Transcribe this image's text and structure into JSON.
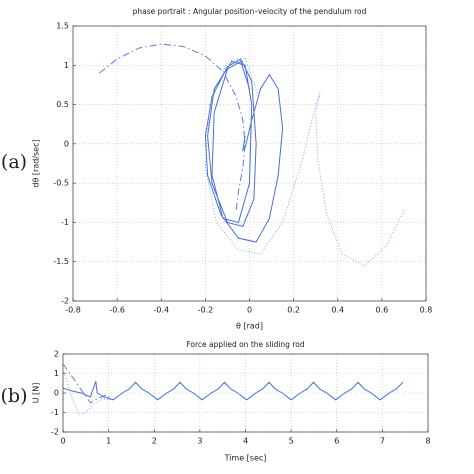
{
  "chart_data": [
    {
      "type": "line",
      "panel_label": "(a)",
      "title": "phase portrait : Angular position–velocity of the pendulum rod",
      "xlabel": "θ [rad]",
      "ylabel": "dθ [rad/sec]",
      "xlim": [
        -0.8,
        0.8
      ],
      "xticks": [
        -0.8,
        -0.6,
        -0.4,
        -0.2,
        0,
        0.2,
        0.4,
        0.6,
        0.8
      ],
      "ylim": [
        -2,
        1.5
      ],
      "yticks": [
        -2,
        -1.5,
        -1,
        -0.5,
        0,
        0.5,
        1,
        1.5
      ],
      "grid": true,
      "series": [
        {
          "color": "#5a7de0",
          "dash": "dashdot",
          "x": [
            -0.68,
            -0.6,
            -0.5,
            -0.4,
            -0.3,
            -0.2,
            -0.12,
            -0.06,
            -0.03,
            -0.02,
            -0.03,
            -0.05,
            -0.06
          ],
          "values": [
            0.9,
            1.08,
            1.22,
            1.27,
            1.24,
            1.12,
            0.92,
            0.6,
            0.3,
            0,
            -0.3,
            -0.6,
            -0.85
          ]
        },
        {
          "color": "#4a6fd8",
          "dash": "solid",
          "x": [
            -0.02,
            -0.03,
            -0.02,
            0.01,
            0.05,
            0.09,
            0.13,
            0.15,
            0.13,
            0.09,
            0.03,
            -0.05,
            -0.13,
            -0.19,
            -0.2,
            -0.17,
            -0.1,
            -0.04,
            0.01,
            0.03,
            0.02,
            -0.03,
            -0.1,
            -0.17,
            -0.19,
            -0.16,
            -0.08,
            -0.02,
            0.01,
            0,
            -0.05,
            -0.12,
            -0.17,
            -0.16,
            -0.1,
            -0.04,
            0
          ],
          "values": [
            0.1,
            -0.08,
            -0.05,
            0.3,
            0.7,
            0.88,
            0.7,
            0.2,
            -0.4,
            -0.95,
            -1.25,
            -1.2,
            -0.9,
            -0.4,
            0.1,
            0.6,
            0.98,
            1.08,
            0.8,
            0,
            -0.7,
            -1.05,
            -1,
            -0.5,
            0.1,
            0.7,
            1.05,
            1,
            0.5,
            -0.5,
            -1,
            -0.95,
            -0.4,
            0.4,
            0.95,
            1.05,
            0.7
          ]
        },
        {
          "color": "#8aa0ea",
          "dash": "dotted",
          "x": [
            0.7,
            0.62,
            0.52,
            0.42,
            0.35,
            0.31,
            0.3,
            0.32,
            0.3,
            0.24,
            0.15,
            0.05,
            -0.05,
            -0.15,
            -0.2,
            -0.18,
            -0.1,
            -0.02,
            0.04
          ],
          "values": [
            -0.85,
            -1.3,
            -1.55,
            -1.4,
            -0.9,
            -0.2,
            0.4,
            0.65,
            0.5,
            -0.2,
            -1,
            -1.4,
            -1.35,
            -1,
            -0.3,
            0.5,
            1.05,
            1.1,
            0.6
          ]
        }
      ]
    },
    {
      "type": "line",
      "panel_label": "(b)",
      "title": "Force applied on the sliding rod",
      "xlabel": "Time [sec]",
      "ylabel": "U [N]",
      "xlim": [
        0,
        8
      ],
      "xticks": [
        0,
        1,
        2,
        3,
        4,
        5,
        6,
        7,
        8
      ],
      "ylim": [
        -2,
        2
      ],
      "yticks": [
        -2,
        -1,
        0,
        1,
        2
      ],
      "grid": true,
      "series": [
        {
          "color": "#5a7de0",
          "dash": "dashdot",
          "x": [
            0,
            0.15,
            0.3,
            0.45,
            0.6,
            0.75,
            0.95,
            1.1
          ],
          "values": [
            1.5,
            1,
            0.5,
            0,
            -0.5,
            -0.3,
            -0.1,
            -0.35
          ]
        },
        {
          "color": "#8aa0ea",
          "dash": "dotted",
          "x": [
            0,
            0.1,
            0.2,
            0.35,
            0.5,
            0.7,
            0.9,
            1.1
          ],
          "values": [
            1.2,
            0.5,
            -0.3,
            -1.1,
            -1,
            -0.5,
            -0.3,
            -0.35
          ]
        },
        {
          "color": "#4a6fd8",
          "dash": "solid",
          "x": [
            0,
            0.2,
            0.4,
            0.6,
            0.72,
            0.75,
            0.9,
            1.1,
            1.3,
            1.45,
            1.59,
            1.73,
            1.88,
            2.075,
            2.275,
            2.425,
            2.565,
            2.705,
            2.855,
            3.05,
            3.25,
            3.4,
            3.54,
            3.68,
            3.83,
            4.025,
            4.225,
            4.375,
            4.515,
            4.655,
            4.805,
            5,
            5.2,
            5.35,
            5.49,
            5.63,
            5.78,
            5.975,
            6.175,
            6.325,
            6.465,
            6.605,
            6.755,
            6.95,
            7.15,
            7.3,
            7.45
          ],
          "values": [
            0.25,
            0.1,
            0,
            -0.2,
            0.6,
            0,
            -0.2,
            -0.35,
            0,
            0.2,
            0.55,
            0.2,
            0,
            -0.35,
            0,
            0.2,
            0.55,
            0.2,
            0,
            -0.35,
            0,
            0.2,
            0.55,
            0.2,
            0,
            -0.35,
            0,
            0.2,
            0.55,
            0.2,
            0,
            -0.35,
            0,
            0.2,
            0.55,
            0.2,
            0,
            -0.35,
            0,
            0.2,
            0.55,
            0.2,
            0,
            -0.35,
            0,
            0.2,
            0.55
          ]
        }
      ]
    }
  ]
}
